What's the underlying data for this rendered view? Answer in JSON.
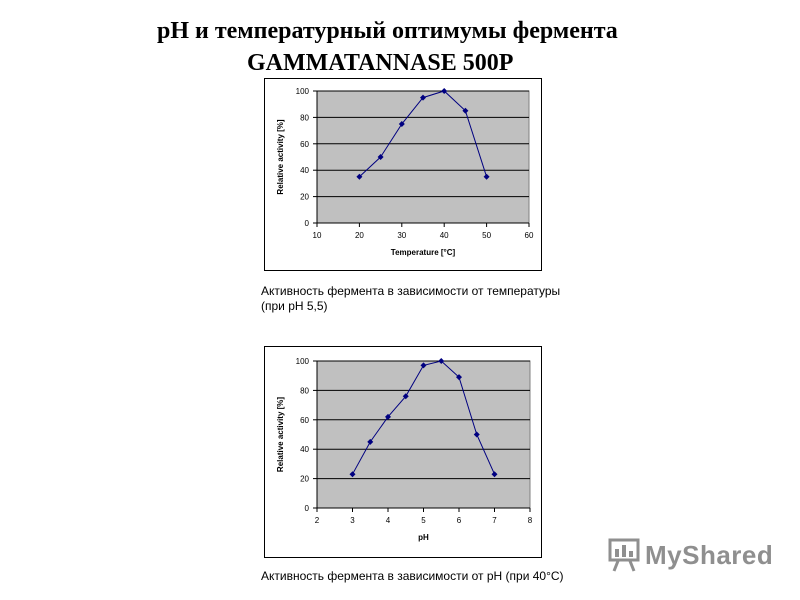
{
  "title": {
    "line1": "рН и температурный оптимумы фермента",
    "line2": "GAMMATANNASE 500P"
  },
  "captions": {
    "chart1": "Активность фермента в зависимости от температуры (при рН 5,5)",
    "chart2": "Активность фермента в зависимости от рН (при 40°С)"
  },
  "watermark": {
    "text": "MyShared",
    "icon": "presentation-board-icon"
  },
  "colors": {
    "plot_bg": "#c0c0c0",
    "series": "#000080",
    "grid": "#000000"
  },
  "chart_data": [
    {
      "type": "line",
      "title": "",
      "xlabel": "Temperature [°C]",
      "ylabel": "Relative activity [%]",
      "xlim": [
        10,
        60
      ],
      "ylim": [
        0,
        100
      ],
      "xticks": [
        10,
        20,
        30,
        40,
        50,
        60
      ],
      "yticks": [
        0,
        20,
        40,
        60,
        80,
        100
      ],
      "grid": "horizontal",
      "x": [
        20,
        25,
        30,
        35,
        40,
        45,
        50
      ],
      "y": [
        35,
        50,
        75,
        95,
        100,
        85,
        35
      ]
    },
    {
      "type": "line",
      "title": "",
      "xlabel": "pH",
      "ylabel": "Relative activity [%]",
      "xlim": [
        2,
        8
      ],
      "ylim": [
        0,
        100
      ],
      "xticks": [
        2,
        3,
        4,
        5,
        6,
        7,
        8
      ],
      "yticks": [
        0,
        20,
        40,
        60,
        80,
        100
      ],
      "grid": "horizontal",
      "x": [
        3,
        3.5,
        4,
        4.5,
        5,
        5.5,
        6,
        6.5,
        7
      ],
      "y": [
        23,
        45,
        62,
        76,
        97,
        100,
        89,
        50,
        23
      ]
    }
  ]
}
